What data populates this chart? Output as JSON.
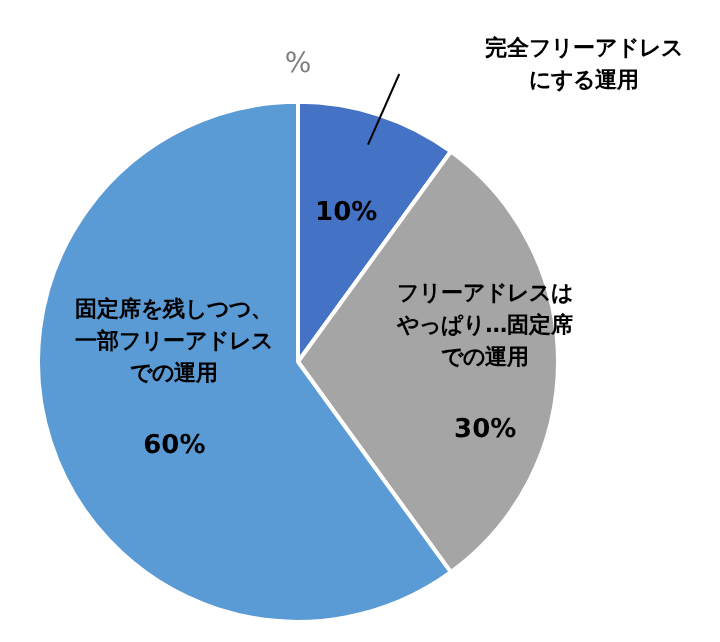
{
  "chart_data": {
    "type": "pie",
    "title": "%",
    "categories": [
      "完全フリーアドレスにする運用",
      "フリーアドレスはやっぱり…固定席での運用",
      "固定席を残しつつ、一部フリーアドレスでの運用"
    ],
    "values": [
      10,
      30,
      60
    ],
    "colors": [
      "#4472c4",
      "#a5a5a5",
      "#5b9bd5"
    ],
    "value_labels": [
      "10%",
      "30%",
      "60%"
    ],
    "legend": false
  }
}
